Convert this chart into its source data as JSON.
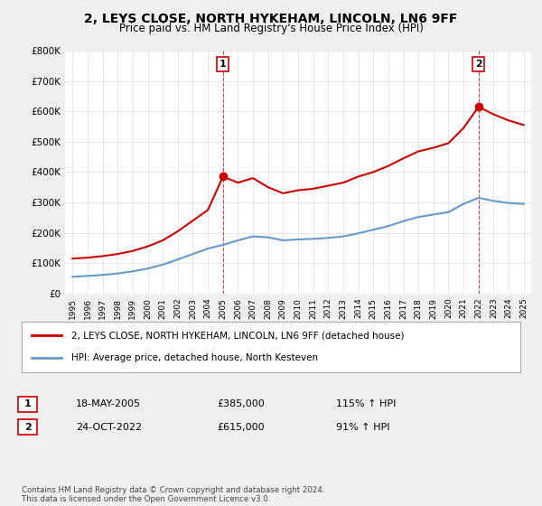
{
  "title": "2, LEYS CLOSE, NORTH HYKEHAM, LINCOLN, LN6 9FF",
  "subtitle": "Price paid vs. HM Land Registry's House Price Index (HPI)",
  "background_color": "#f0f0f0",
  "plot_bg_color": "#ffffff",
  "red_color": "#cc0000",
  "blue_color": "#6699cc",
  "marker1_idx": 10,
  "marker2_idx": 27,
  "marker1_value": 385000,
  "marker2_value": 615000,
  "legend_line1": "2, LEYS CLOSE, NORTH HYKEHAM, LINCOLN, LN6 9FF (detached house)",
  "legend_line2": "HPI: Average price, detached house, North Kesteven",
  "table_row1": [
    "1",
    "18-MAY-2005",
    "£385,000",
    "115% ↑ HPI"
  ],
  "table_row2": [
    "2",
    "24-OCT-2022",
    "£615,000",
    "91% ↑ HPI"
  ],
  "footer": "Contains HM Land Registry data © Crown copyright and database right 2024.\nThis data is licensed under the Open Government Licence v3.0.",
  "ylim": [
    0,
    800000
  ],
  "yticks": [
    0,
    100000,
    200000,
    300000,
    400000,
    500000,
    600000,
    700000,
    800000
  ],
  "years": [
    "1995",
    "1996",
    "1997",
    "1998",
    "1999",
    "2000",
    "2001",
    "2002",
    "2003",
    "2004",
    "2005",
    "2006",
    "2007",
    "2008",
    "2009",
    "2010",
    "2011",
    "2012",
    "2013",
    "2014",
    "2015",
    "2016",
    "2017",
    "2018",
    "2019",
    "2020",
    "2021",
    "2022",
    "2023",
    "2024",
    "2025"
  ],
  "hpi_values": [
    55000,
    58000,
    61000,
    66000,
    73000,
    82000,
    95000,
    112000,
    130000,
    148000,
    160000,
    175000,
    188000,
    185000,
    175000,
    178000,
    180000,
    183000,
    188000,
    198000,
    210000,
    222000,
    238000,
    252000,
    260000,
    268000,
    295000,
    315000,
    305000,
    298000,
    295000
  ],
  "red_values": [
    115000,
    118000,
    123000,
    130000,
    140000,
    155000,
    175000,
    205000,
    240000,
    275000,
    385000,
    365000,
    380000,
    350000,
    330000,
    340000,
    345000,
    355000,
    365000,
    385000,
    400000,
    420000,
    445000,
    468000,
    480000,
    495000,
    545000,
    615000,
    590000,
    570000,
    555000
  ]
}
